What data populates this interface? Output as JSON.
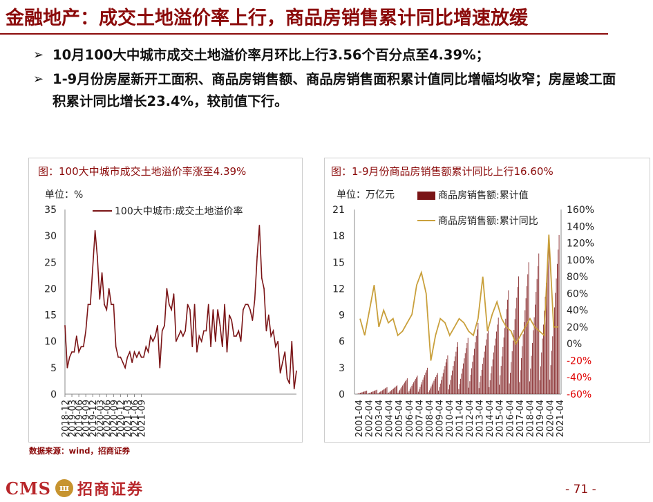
{
  "header": {
    "title": "金融地产：成交土地溢价率上行，商品房销售累计同比增速放缓"
  },
  "bullets": [
    {
      "mark": "➢",
      "text": "10月100大中城市成交土地溢价率月环比上行3.56个百分点至4.39%；"
    },
    {
      "mark": "➢",
      "text": "1-9月份房屋新开工面积、商品房销售额、商品房销售面积累计值同比增幅均收窄；房屋竣工面积累计同比增长23.4%，较前值下行。"
    }
  ],
  "footer": {
    "source": "数据来源：wind，招商证券",
    "logo_latin": "CMS",
    "logo_cn": "招商证券",
    "logo_coin": "ш",
    "page": "- 71 -"
  },
  "colors": {
    "brand": "#8b0a0a",
    "line": "#7a1416",
    "bar": "#7a1416",
    "yoy_line": "#c9a03c",
    "neg": "#e00000"
  },
  "chart_data": [
    {
      "type": "line",
      "title": "图：100大中城市成交土地溢价率涨至4.39%",
      "unit_label": "单位：%",
      "series": [
        {
          "name": "100大中城市:成交土地溢价率",
          "values": [
            13,
            5,
            7,
            8,
            8,
            11,
            8,
            9,
            9,
            12,
            17,
            17,
            24,
            31,
            26,
            18,
            23,
            17,
            16,
            20,
            17,
            17,
            9,
            7,
            7,
            6,
            5,
            7,
            8,
            6,
            8,
            7,
            8,
            7,
            7,
            9,
            8,
            11,
            10,
            11,
            13,
            5,
            12,
            13,
            20,
            17,
            16,
            19,
            10,
            11,
            12,
            11,
            12,
            17,
            16,
            9,
            17,
            8,
            11,
            10,
            12,
            12,
            17,
            9,
            16,
            10,
            16,
            13,
            9,
            17,
            8,
            15,
            14,
            11,
            11,
            12,
            10,
            16,
            17,
            17,
            16,
            14,
            18,
            26,
            32,
            22,
            20,
            12,
            15,
            11,
            12,
            9,
            10,
            4,
            6,
            8,
            3,
            2,
            10,
            1,
            4.39
          ]
        }
      ],
      "xticks": [
        "2018-12",
        "2019-03",
        "2019-06",
        "2019-09",
        "2019-12",
        "2020-03",
        "2020-06",
        "2020-09",
        "2020-12",
        "2021-03",
        "2021-06",
        "2021-09"
      ],
      "yticks": [
        "0",
        "5",
        "10",
        "15",
        "20",
        "25",
        "30",
        "35"
      ],
      "ylim": [
        0,
        35
      ]
    },
    {
      "type": "bar",
      "title": "图：1-9月份商品房销售额累计同比上行16.60%",
      "unit_label": "单位：万亿元",
      "series": [
        {
          "name": "商品房销售额:累计值",
          "type": "bar",
          "axis": "left"
        },
        {
          "name": "商品房销售额:累计同比",
          "type": "line",
          "axis": "right"
        }
      ],
      "annual_totals": [
        0.4,
        0.5,
        0.8,
        1.0,
        1.8,
        2.1,
        3.0,
        2.4,
        4.4,
        5.9,
        6.4,
        8.1,
        7.6,
        8.7,
        11.8,
        13.4,
        15.0,
        16.0,
        17.4,
        18.1
      ],
      "yoy_profile": [
        30,
        10,
        40,
        70,
        20,
        40,
        25,
        30,
        10,
        15,
        25,
        35,
        70,
        85,
        60,
        -20,
        10,
        30,
        25,
        10,
        20,
        30,
        25,
        15,
        10,
        30,
        80,
        15,
        35,
        50,
        30,
        20,
        15,
        0,
        10,
        20,
        30,
        20,
        15,
        10,
        130,
        20,
        20
      ],
      "xticks": [
        "2001-04",
        "2002-04",
        "2003-04",
        "2004-04",
        "2005-04",
        "2006-04",
        "2007-04",
        "2008-04",
        "2009-04",
        "2010-04",
        "2011-04",
        "2012-04",
        "2013-04",
        "2014-04",
        "2015-04",
        "2016-04",
        "2017-04",
        "2018-04",
        "2019-04",
        "2020-04",
        "2021-04"
      ],
      "yticks_left": [
        "0",
        "3",
        "6",
        "9",
        "12",
        "15",
        "18",
        "21"
      ],
      "yticks_right": [
        "-60%",
        "-40%",
        "-20%",
        "0%",
        "20%",
        "40%",
        "60%",
        "80%",
        "100%",
        "120%",
        "140%",
        "160%"
      ],
      "ylim_left": [
        0,
        21
      ],
      "ylim_right": [
        -60,
        160
      ]
    }
  ]
}
